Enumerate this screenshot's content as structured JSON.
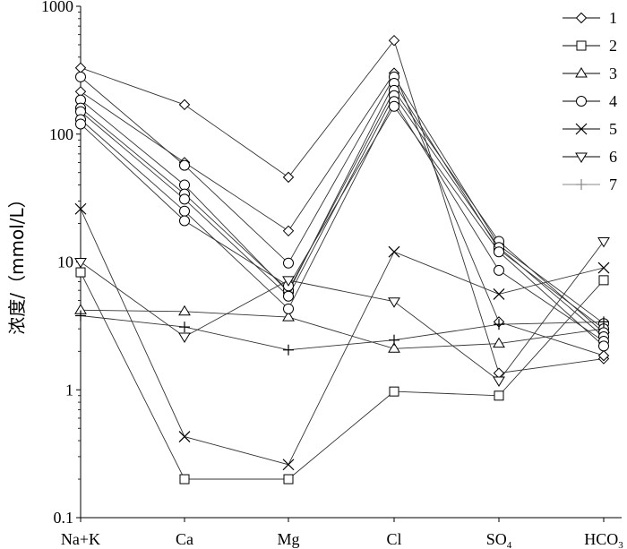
{
  "chart_data": {
    "type": "line",
    "title": "",
    "ylabel": "浓度/（mmol/L）",
    "xlabel": "",
    "yscale": "log",
    "ylim": [
      0.1,
      1000
    ],
    "y_ticks": [
      "0.1",
      "1",
      "10",
      "100",
      "1000"
    ],
    "categories": [
      {
        "main": "Na+K",
        "sub": ""
      },
      {
        "main": "Ca",
        "sub": ""
      },
      {
        "main": "Mg",
        "sub": ""
      },
      {
        "main": "Cl",
        "sub": ""
      },
      {
        "main": "SO",
        "sub": "4"
      },
      {
        "main": "HCO",
        "sub": "3"
      }
    ],
    "legend_position": "top-right",
    "series": [
      {
        "name": "1",
        "marker": "diamond",
        "values": [
          330,
          170,
          46,
          540,
          1.35,
          1.75
        ]
      },
      {
        "name": "1",
        "marker": "diamond",
        "values": [
          215,
          60,
          17.5,
          300,
          3.4,
          1.85
        ]
      },
      {
        "name": "2",
        "marker": "square",
        "values": [
          8.3,
          0.2,
          0.2,
          0.97,
          0.9,
          7.2
        ]
      },
      {
        "name": "3",
        "marker": "triangle",
        "values": [
          4.2,
          4.1,
          3.7,
          2.1,
          2.3,
          3.0
        ]
      },
      {
        "name": "4",
        "marker": "circle",
        "values": [
          280,
          57,
          9.8,
          280,
          13.5,
          3.3
        ]
      },
      {
        "name": "4",
        "marker": "circle",
        "values": [
          185,
          40,
          5.8,
          250,
          12.5,
          3.0
        ]
      },
      {
        "name": "4",
        "marker": "circle",
        "values": [
          160,
          34,
          6.0,
          220,
          14.5,
          2.8
        ]
      },
      {
        "name": "4",
        "marker": "circle",
        "values": [
          150,
          31,
          5.4,
          200,
          13.0,
          2.6
        ]
      },
      {
        "name": "4",
        "marker": "circle",
        "values": [
          130,
          25,
          4.3,
          180,
          8.6,
          2.4
        ]
      },
      {
        "name": "4",
        "marker": "circle",
        "values": [
          120,
          21,
          6.5,
          165,
          12.0,
          2.2
        ]
      },
      {
        "name": "5",
        "marker": "x",
        "values": [
          26,
          0.43,
          0.26,
          12,
          5.6,
          9.0
        ]
      },
      {
        "name": "6",
        "marker": "triangle-down",
        "values": [
          10,
          2.6,
          7.2,
          4.9,
          1.18,
          14.5
        ]
      },
      {
        "name": "7",
        "marker": "plus",
        "values": [
          3.8,
          3.1,
          2.05,
          2.45,
          3.25,
          3.4
        ]
      }
    ],
    "legend": [
      {
        "label": "1",
        "marker": "diamond"
      },
      {
        "label": "2",
        "marker": "square"
      },
      {
        "label": "3",
        "marker": "triangle"
      },
      {
        "label": "4",
        "marker": "circle"
      },
      {
        "label": "5",
        "marker": "x"
      },
      {
        "label": "6",
        "marker": "triangle-down"
      },
      {
        "label": "7",
        "marker": "plus"
      }
    ],
    "colors": {
      "axis": "#000000",
      "line": "#333333",
      "legend_7": "#888888"
    }
  }
}
